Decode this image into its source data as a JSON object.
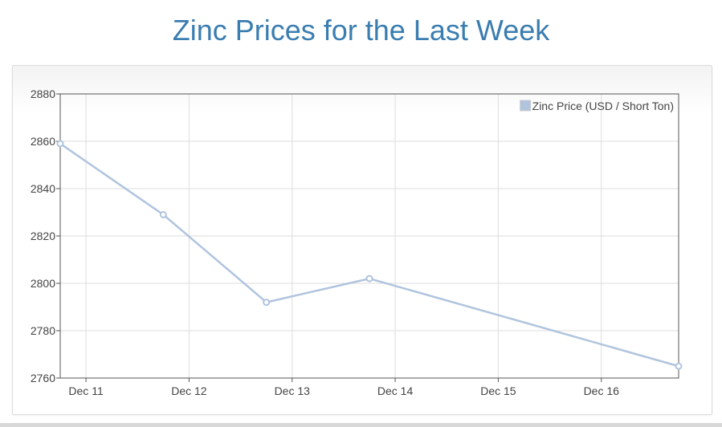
{
  "title": "Zinc Prices for the Last Week",
  "colors": {
    "title": "#3a7db0",
    "series": "#b0c4de",
    "grid": "#dddddd",
    "axis": "#555555",
    "tick_text": "#444444"
  },
  "chart_data": {
    "type": "line",
    "title": "Zinc Prices for the Last Week",
    "xlabel": "",
    "ylabel": "",
    "x_ticks": [
      "Dec 11",
      "Dec 12",
      "Dec 13",
      "Dec 14",
      "Dec 15",
      "Dec 16"
    ],
    "x_tick_positions_day": [
      11,
      12,
      13,
      14,
      15,
      16
    ],
    "xlim_day": [
      10.75,
      16.75
    ],
    "ylim": [
      2760,
      2880
    ],
    "y_ticks": [
      2760,
      2780,
      2800,
      2820,
      2840,
      2860,
      2880
    ],
    "grid": true,
    "legend": "top-right",
    "series": [
      {
        "name": "Zinc Price (USD / Short Ton)",
        "points": [
          {
            "x": "Dec 10 18:00",
            "day": 10.75,
            "y": 2859
          },
          {
            "x": "Dec 11 18:00",
            "day": 11.75,
            "y": 2829
          },
          {
            "x": "Dec 12 18:00",
            "day": 12.75,
            "y": 2792
          },
          {
            "x": "Dec 13 18:00",
            "day": 13.75,
            "y": 2802
          },
          {
            "x": "Dec 16 18:00",
            "day": 16.75,
            "y": 2765
          }
        ]
      }
    ]
  }
}
